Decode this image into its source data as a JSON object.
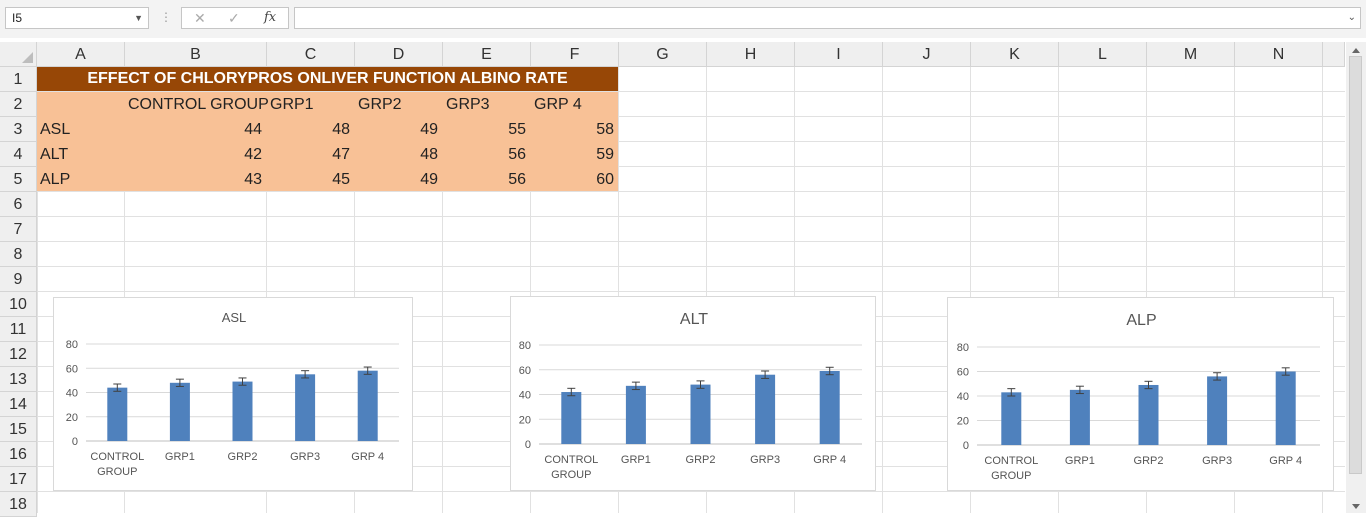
{
  "formula_bar": {
    "name_box": "I5",
    "cancel_icon": "✕",
    "enter_icon": "✓",
    "fx_icon": "fx",
    "formula": ""
  },
  "columns": [
    "A",
    "B",
    "C",
    "D",
    "E",
    "F",
    "G",
    "H",
    "I",
    "J",
    "K",
    "L",
    "M",
    "N"
  ],
  "rows": [
    "1",
    "2",
    "3",
    "4",
    "5",
    "6",
    "7",
    "8",
    "9",
    "10",
    "11",
    "12",
    "13",
    "14",
    "15",
    "16",
    "17",
    "18"
  ],
  "sheet": {
    "title": "EFFECT OF CHLORYPROS ONLIVER FUNCTION ALBINO RATE",
    "headers": [
      "CONTROL GROUP",
      "GRP1",
      "GRP2",
      "GRP3",
      "GRP 4"
    ],
    "data": [
      {
        "label": "ASL",
        "values": [
          "44",
          "48",
          "49",
          "55",
          "58"
        ]
      },
      {
        "label": "ALT",
        "values": [
          "42",
          "47",
          "48",
          "56",
          "59"
        ]
      },
      {
        "label": "ALP",
        "values": [
          "43",
          "45",
          "49",
          "56",
          "60"
        ]
      }
    ]
  },
  "colors": {
    "title_fill": "#974706",
    "data_fill": "#f8c196",
    "bar": "#4f81bd",
    "gridline": "#d9d9d9"
  },
  "chart_data": [
    {
      "type": "bar",
      "title": "ASL",
      "categories": [
        "CONTROL GROUP",
        "GRP1",
        "GRP2",
        "GRP3",
        "GRP 4"
      ],
      "values": [
        44,
        48,
        49,
        55,
        58
      ],
      "ylim": [
        0,
        80
      ],
      "yticks": [
        0,
        20,
        40,
        60,
        80
      ],
      "error_bars": true,
      "grid": true
    },
    {
      "type": "bar",
      "title": "ALT",
      "categories": [
        "CONTROL GROUP",
        "GRP1",
        "GRP2",
        "GRP3",
        "GRP 4"
      ],
      "values": [
        42,
        47,
        48,
        56,
        59
      ],
      "ylim": [
        0,
        80
      ],
      "yticks": [
        0,
        20,
        40,
        60,
        80
      ],
      "error_bars": true,
      "grid": true
    },
    {
      "type": "bar",
      "title": "ALP",
      "categories": [
        "CONTROL GROUP",
        "GRP1",
        "GRP2",
        "GRP3",
        "GRP 4"
      ],
      "values": [
        43,
        45,
        49,
        56,
        60
      ],
      "ylim": [
        0,
        80
      ],
      "yticks": [
        0,
        20,
        40,
        60,
        80
      ],
      "error_bars": true,
      "grid": true
    }
  ]
}
